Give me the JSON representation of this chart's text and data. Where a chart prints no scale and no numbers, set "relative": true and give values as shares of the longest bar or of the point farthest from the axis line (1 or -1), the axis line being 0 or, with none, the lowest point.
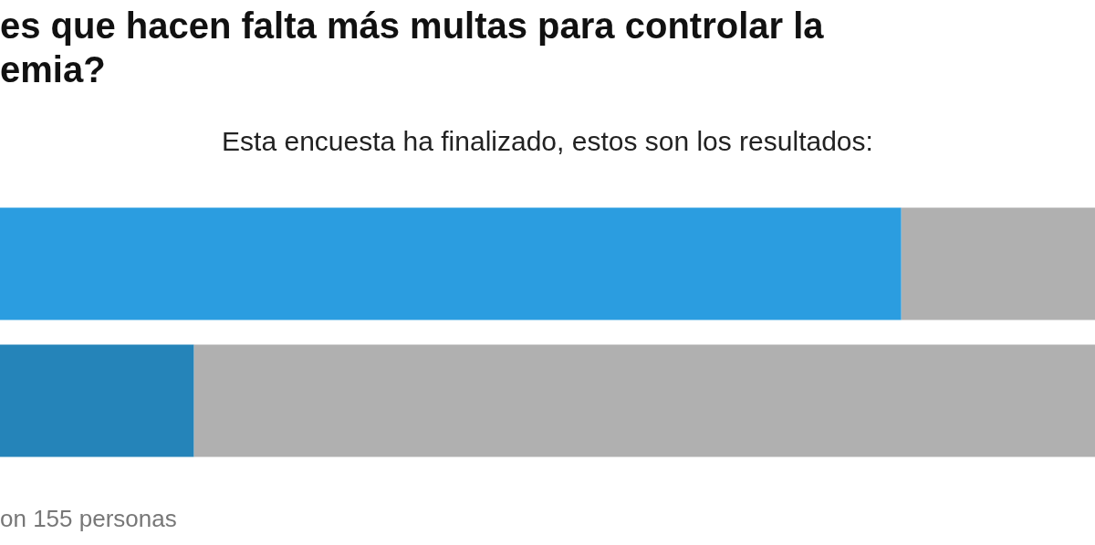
{
  "chart_data": {
    "type": "bar",
    "title": "es que hacen falta más multas para controlar la\nemia?",
    "subtitle": "Esta encuesta ha finalizado, estos son los resultados:",
    "annotations": [
      "on 155 personas"
    ],
    "orientation": "horizontal",
    "stacked": true,
    "relative": true,
    "categories": [
      null,
      null
    ],
    "series": [
      {
        "colors": [
          "#2b9de0",
          "#2584b9"
        ],
        "values": [
          0.823,
          0.177
        ]
      },
      {
        "color": "#b0b0b0",
        "values": [
          0.177,
          0.823
        ]
      }
    ]
  }
}
